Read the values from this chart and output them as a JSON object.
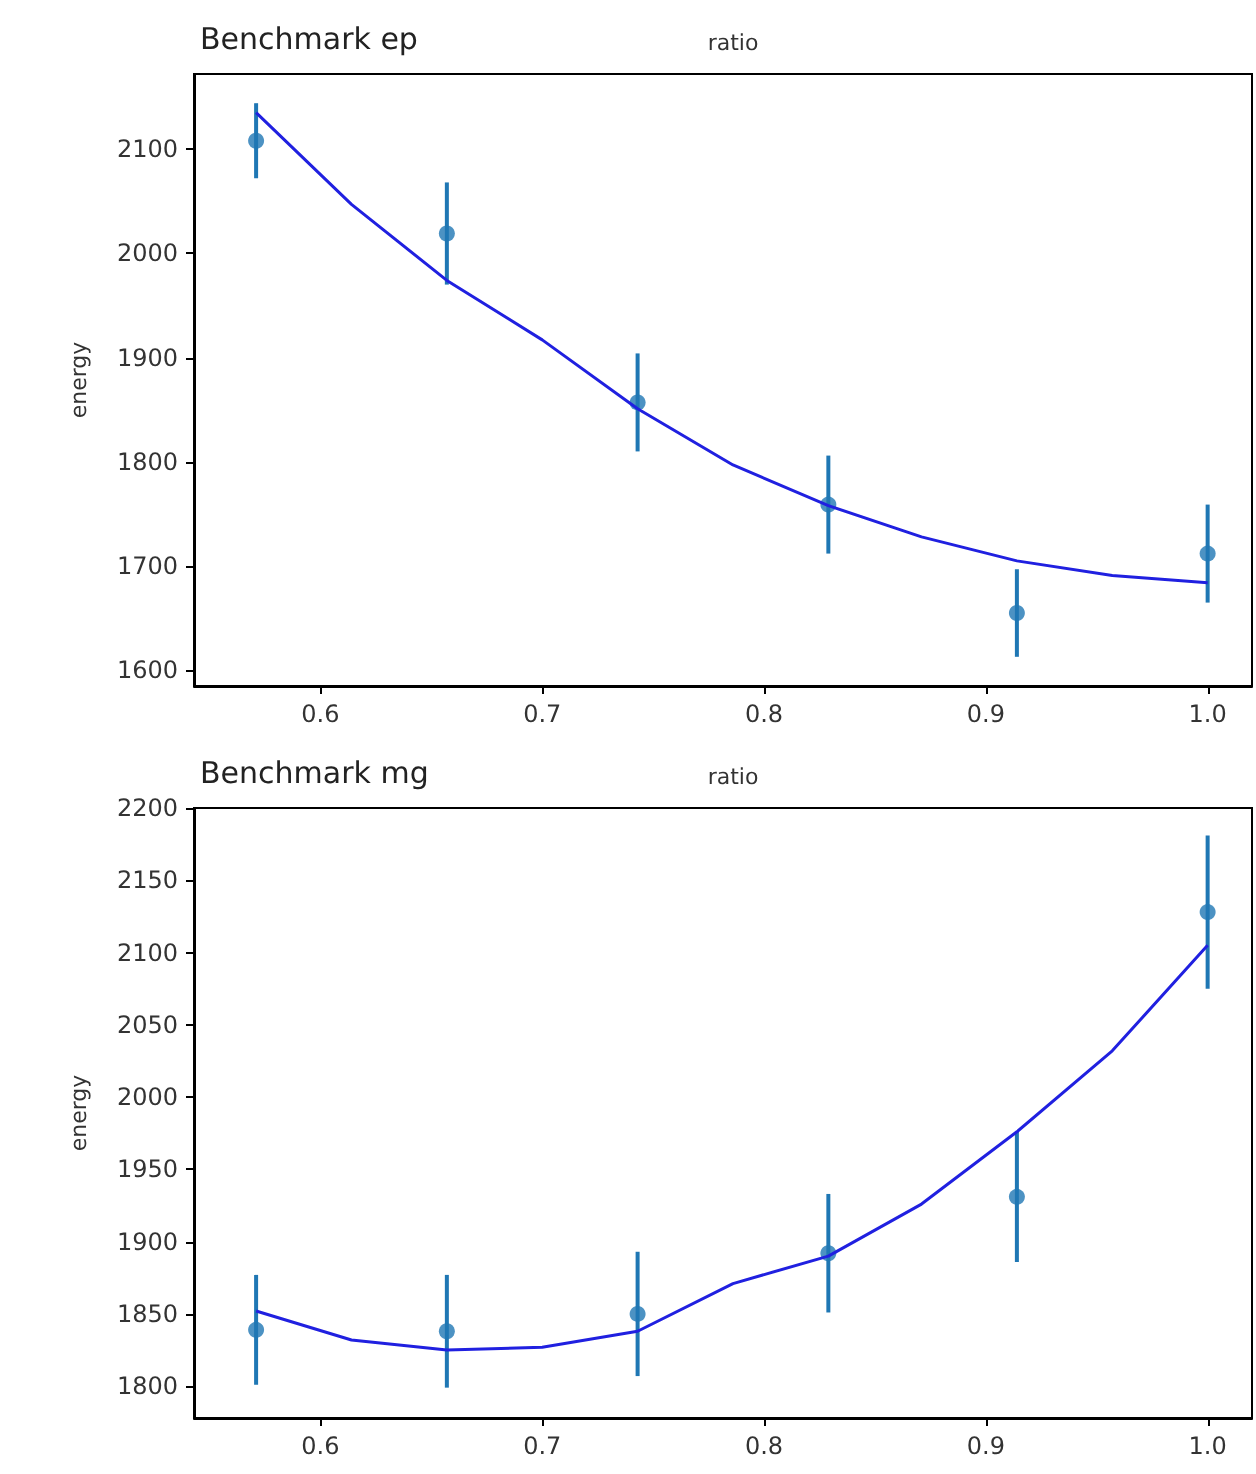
{
  "chart_data": [
    {
      "type": "scatter",
      "title": "Benchmark ep",
      "xlabel": "ratio",
      "ylabel": "energy",
      "xlim": [
        0.543,
        1.02
      ],
      "ylim": [
        1585,
        2172
      ],
      "xticks": [
        0.6,
        0.7,
        0.8,
        0.9,
        {
          "value": 1,
          "label": "1.0"
        }
      ],
      "yticks": [
        1600,
        1700,
        1800,
        1900,
        2000,
        2100
      ],
      "series": [
        {
          "color": "#1f77b4",
          "marker": "circle",
          "x": [
            0.571,
            0.657,
            0.743,
            0.829,
            0.914,
            1.0
          ],
          "values": [
            2108,
            2019,
            1857,
            1759,
            1655,
            1712
          ],
          "errors": [
            36,
            49,
            47,
            47,
            42,
            47
          ]
        },
        {
          "type": "line",
          "color": "#2020e0",
          "marker": "none",
          "x": [
            0.571,
            0.614,
            0.657,
            0.7,
            0.743,
            0.786,
            0.829,
            0.871,
            0.914,
            0.957,
            1.0
          ],
          "values": [
            2135,
            2047,
            1974,
            1917,
            1851,
            1797,
            1758,
            1728,
            1705,
            1691,
            1684
          ]
        }
      ]
    },
    {
      "type": "scatter",
      "title": "Benchmark mg",
      "xlabel": "ratio",
      "ylabel": "energy",
      "xlim": [
        0.543,
        1.02
      ],
      "ylim": [
        1778,
        2200
      ],
      "xticks": [
        0.6,
        0.7,
        0.8,
        0.9,
        {
          "value": 1,
          "label": "1.0"
        }
      ],
      "yticks": [
        1800,
        1850,
        1900,
        1950,
        2000,
        2050,
        2100,
        2150,
        2200
      ],
      "series": [
        {
          "color": "#1f77b4",
          "marker": "circle",
          "x": [
            0.571,
            0.657,
            0.743,
            0.829,
            0.914,
            1.0
          ],
          "values": [
            1839,
            1838,
            1850,
            1892,
            1931,
            2128
          ],
          "errors": [
            38,
            39,
            43,
            41,
            45,
            53
          ]
        },
        {
          "type": "line",
          "color": "#2020e0",
          "marker": "none",
          "x": [
            0.571,
            0.614,
            0.657,
            0.7,
            0.743,
            0.786,
            0.829,
            0.871,
            0.914,
            0.957,
            1.0
          ],
          "values": [
            1852,
            1832,
            1825,
            1827,
            1838,
            1871,
            1890,
            1926,
            1976,
            2032,
            2105
          ]
        }
      ]
    }
  ]
}
